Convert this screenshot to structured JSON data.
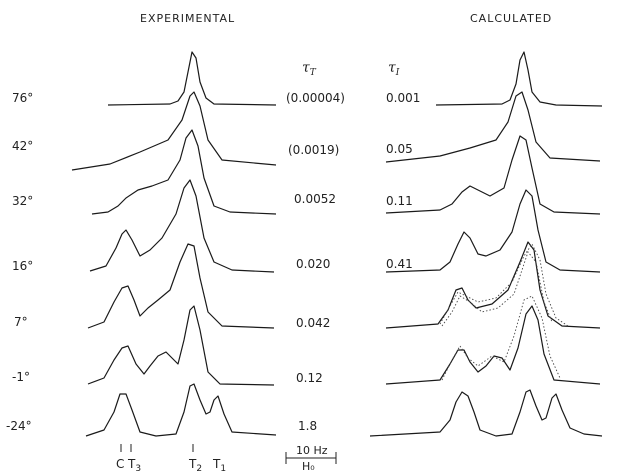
{
  "headings": {
    "experimental": "EXPERIMENTAL",
    "calculated": "CALCULATED"
  },
  "tau_T_label": "τ",
  "tau_T_sub": "T",
  "tau_I_label": "τ",
  "tau_I_sub": "I",
  "rows": [
    {
      "temperature": "76°",
      "tau_T": "(0.00004)",
      "tau_I": "0.001"
    },
    {
      "temperature": "42°",
      "tau_T": "(0.0019)",
      "tau_I": "0.05"
    },
    {
      "temperature": "32°",
      "tau_T": "0.0052",
      "tau_I": "0.11"
    },
    {
      "temperature": "16°",
      "tau_T": "0.020",
      "tau_I": "0.41"
    },
    {
      "temperature": "7°",
      "tau_T": "0.042",
      "tau_I": ""
    },
    {
      "temperature": "-1°",
      "tau_T": "0.12",
      "tau_I": ""
    },
    {
      "temperature": "-24°",
      "tau_T": "1.8",
      "tau_I": ""
    }
  ],
  "peak_labels": [
    {
      "main": "C",
      "sub": ""
    },
    {
      "main": "T",
      "sub": "3"
    },
    {
      "main": "T",
      "sub": "2"
    },
    {
      "main": "T",
      "sub": "1"
    }
  ],
  "scale_bar": {
    "label": "10 Hz",
    "field": "H₀"
  }
}
